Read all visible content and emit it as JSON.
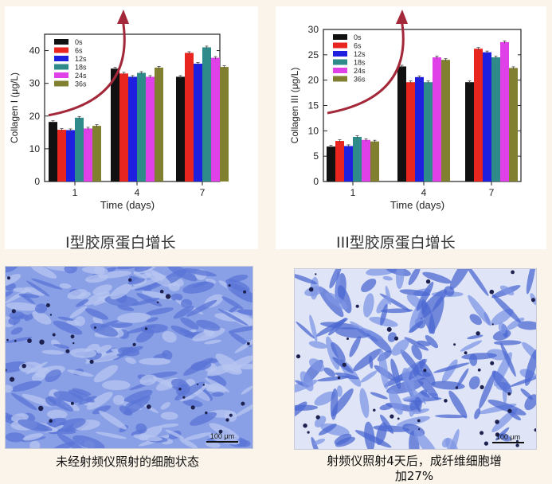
{
  "chart_data": [
    {
      "type": "bar",
      "categories": [
        "1",
        "4",
        "7"
      ],
      "xlabel": "Time (days)",
      "ylabel": "Collagen I (μg/L)",
      "ylim": [
        0,
        45
      ],
      "yticks": [
        0,
        10,
        20,
        30,
        40
      ],
      "legend": "top-left",
      "series": [
        {
          "name": "0s",
          "color": "#111111",
          "values": [
            18.2,
            34.5,
            32.0
          ]
        },
        {
          "name": "6s",
          "color": "#e8261f",
          "values": [
            15.8,
            33.0,
            39.3
          ]
        },
        {
          "name": "12s",
          "color": "#1f1fe0",
          "values": [
            15.7,
            32.0,
            36.0
          ]
        },
        {
          "name": "18s",
          "color": "#2f8a8a",
          "values": [
            19.5,
            33.2,
            41.0
          ]
        },
        {
          "name": "24s",
          "color": "#e040e8",
          "values": [
            16.2,
            32.0,
            37.8
          ]
        },
        {
          "name": "36s",
          "color": "#808030",
          "values": [
            17.0,
            34.8,
            35.0
          ]
        }
      ]
    },
    {
      "type": "bar",
      "categories": [
        "1",
        "4",
        "7"
      ],
      "xlabel": "Time (days)",
      "ylabel": "Collagen III (μg/L)",
      "ylim": [
        0,
        30
      ],
      "yticks": [
        0,
        5,
        10,
        15,
        20,
        25,
        30
      ],
      "legend": "top-left",
      "series": [
        {
          "name": "0s",
          "color": "#111111",
          "values": [
            6.9,
            22.7,
            19.6
          ]
        },
        {
          "name": "6s",
          "color": "#e8261f",
          "values": [
            8.0,
            19.6,
            26.2
          ]
        },
        {
          "name": "12s",
          "color": "#1f1fe0",
          "values": [
            7.0,
            20.6,
            25.5
          ]
        },
        {
          "name": "18s",
          "color": "#2f8a8a",
          "values": [
            8.8,
            19.6,
            24.5
          ]
        },
        {
          "name": "24s",
          "color": "#e040e8",
          "values": [
            8.2,
            24.5,
            27.5
          ]
        },
        {
          "name": "36s",
          "color": "#808030",
          "values": [
            7.9,
            24.0,
            22.4
          ]
        }
      ]
    }
  ],
  "captions": {
    "chart1": "I型胶原蛋白增长",
    "chart2": "III型胶原蛋白增长"
  },
  "images": {
    "left_scale": "100 μm",
    "right_scale": "100 μm",
    "left_caption": "未经射频仪照射的细胞状态",
    "right_caption_line1": "射频仪照射4天后，成纤维细胞增",
    "right_caption_line2": "加27%"
  },
  "colors": {
    "arrow": "#a3283a",
    "cell_stain": "#3d5fd0",
    "background": "#fbf4ea"
  }
}
